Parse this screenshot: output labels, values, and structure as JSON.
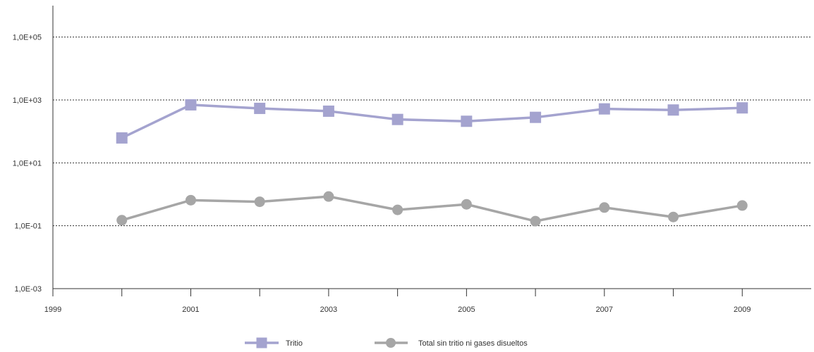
{
  "chart_data": {
    "type": "line",
    "x_scale": "linear",
    "y_scale": "log",
    "x_lim": [
      1999,
      2010
    ],
    "y_lim": [
      0.001,
      1000000
    ],
    "x_ticks": [
      1999,
      2000,
      2001,
      2002,
      2003,
      2004,
      2005,
      2006,
      2007,
      2008,
      2009
    ],
    "x_tick_labels": [
      "1999",
      "",
      "2001",
      "",
      "2003",
      "",
      "2005",
      "",
      "2007",
      "",
      "2009"
    ],
    "y_ticks": [
      0.001,
      0.1,
      10,
      1000,
      100000
    ],
    "y_tick_labels": [
      "1,0E-03",
      "1,0E-01",
      "1,0E+01",
      "1,0E+03",
      "1,0E+05"
    ],
    "grid": "horizontal dotted",
    "legend_position": "bottom",
    "series": [
      {
        "name": "Tritio",
        "marker": "square",
        "color": "#a4a3cf",
        "x": [
          2000,
          2001,
          2002,
          2003,
          2004,
          2005,
          2006,
          2007,
          2008,
          2009
        ],
        "y": [
          62,
          700,
          540,
          440,
          240,
          210,
          280,
          520,
          480,
          560
        ]
      },
      {
        "name": "Total sin tritio ni gases disueltos",
        "marker": "circle",
        "color": "#a6a6a6",
        "x": [
          2000,
          2001,
          2002,
          2003,
          2004,
          2005,
          2006,
          2007,
          2008,
          2009
        ],
        "y": [
          0.15,
          0.65,
          0.58,
          0.85,
          0.32,
          0.48,
          0.14,
          0.38,
          0.19,
          0.44
        ]
      }
    ]
  }
}
